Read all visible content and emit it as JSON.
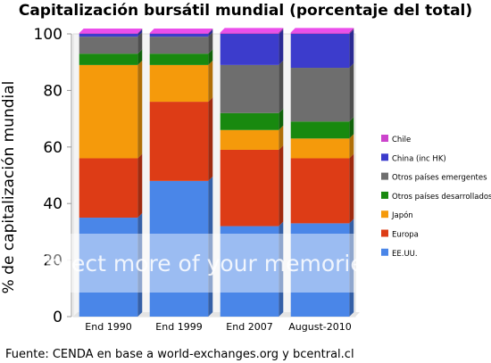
{
  "title": "Capitalización bursátil mundial (porcentaje del total)",
  "footer": "Fuente: CENDA en base a world-exchanges.org y bcentral.cl",
  "watermark": "protect more of your memories",
  "chart_data": {
    "type": "bar",
    "stacked": true,
    "percent_stacked": true,
    "ylabel": "% de capitalización mundial",
    "ylim": [
      0,
      100
    ],
    "yticks": [
      0,
      20,
      40,
      60,
      80,
      100
    ],
    "grid": false,
    "legend_position": "right",
    "categories": [
      "End 1990",
      "End 1999",
      "End 2007",
      "August-2010"
    ],
    "series": [
      {
        "name": "EE.UU.",
        "color": "#4a86e8",
        "values": [
          35,
          48,
          32,
          33
        ]
      },
      {
        "name": "Europa",
        "color": "#dd3c16",
        "values": [
          21,
          28,
          27,
          23
        ]
      },
      {
        "name": "Japón",
        "color": "#f59a0b",
        "values": [
          33,
          13,
          7,
          7
        ]
      },
      {
        "name": "Otros países desarrollados",
        "color": "#18890f",
        "values": [
          4,
          4,
          6,
          6
        ]
      },
      {
        "name": "Otros países emergentes",
        "color": "#6e6e6e",
        "values": [
          6,
          6,
          17,
          19
        ]
      },
      {
        "name": "China (inc HK)",
        "color": "#3c3ccc",
        "values": [
          1,
          1,
          11,
          12
        ]
      },
      {
        "name": "Chile",
        "color": "#cc44cc",
        "values": [
          0.3,
          0.3,
          0.5,
          0.5
        ]
      }
    ]
  }
}
